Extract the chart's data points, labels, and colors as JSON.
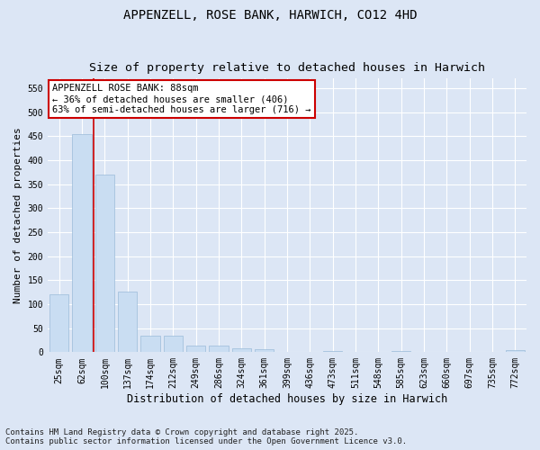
{
  "title": "APPENZELL, ROSE BANK, HARWICH, CO12 4HD",
  "subtitle": "Size of property relative to detached houses in Harwich",
  "xlabel": "Distribution of detached houses by size in Harwich",
  "ylabel": "Number of detached properties",
  "categories": [
    "25sqm",
    "62sqm",
    "100sqm",
    "137sqm",
    "174sqm",
    "212sqm",
    "249sqm",
    "286sqm",
    "324sqm",
    "361sqm",
    "399sqm",
    "436sqm",
    "473sqm",
    "511sqm",
    "548sqm",
    "585sqm",
    "623sqm",
    "660sqm",
    "697sqm",
    "735sqm",
    "772sqm"
  ],
  "values": [
    120,
    455,
    370,
    126,
    35,
    35,
    14,
    13,
    8,
    6,
    1,
    0,
    2,
    0,
    0,
    2,
    0,
    0,
    0,
    0,
    4
  ],
  "bar_color": "#c9ddf2",
  "bar_edge_color": "#9bbbd8",
  "vline_color": "#cc0000",
  "annotation_text": "APPENZELL ROSE BANK: 88sqm\n← 36% of detached houses are smaller (406)\n63% of semi-detached houses are larger (716) →",
  "annotation_box_facecolor": "#ffffff",
  "annotation_box_edgecolor": "#cc0000",
  "ylim": [
    0,
    570
  ],
  "yticks": [
    0,
    50,
    100,
    150,
    200,
    250,
    300,
    350,
    400,
    450,
    500,
    550
  ],
  "fig_bg_color": "#dce6f5",
  "plot_bg_color": "#dce6f5",
  "grid_color": "#ffffff",
  "footnote": "Contains HM Land Registry data © Crown copyright and database right 2025.\nContains public sector information licensed under the Open Government Licence v3.0.",
  "title_fontsize": 10,
  "subtitle_fontsize": 9.5,
  "xlabel_fontsize": 8.5,
  "ylabel_fontsize": 8,
  "tick_fontsize": 7,
  "annotation_fontsize": 7.5,
  "footnote_fontsize": 6.5
}
